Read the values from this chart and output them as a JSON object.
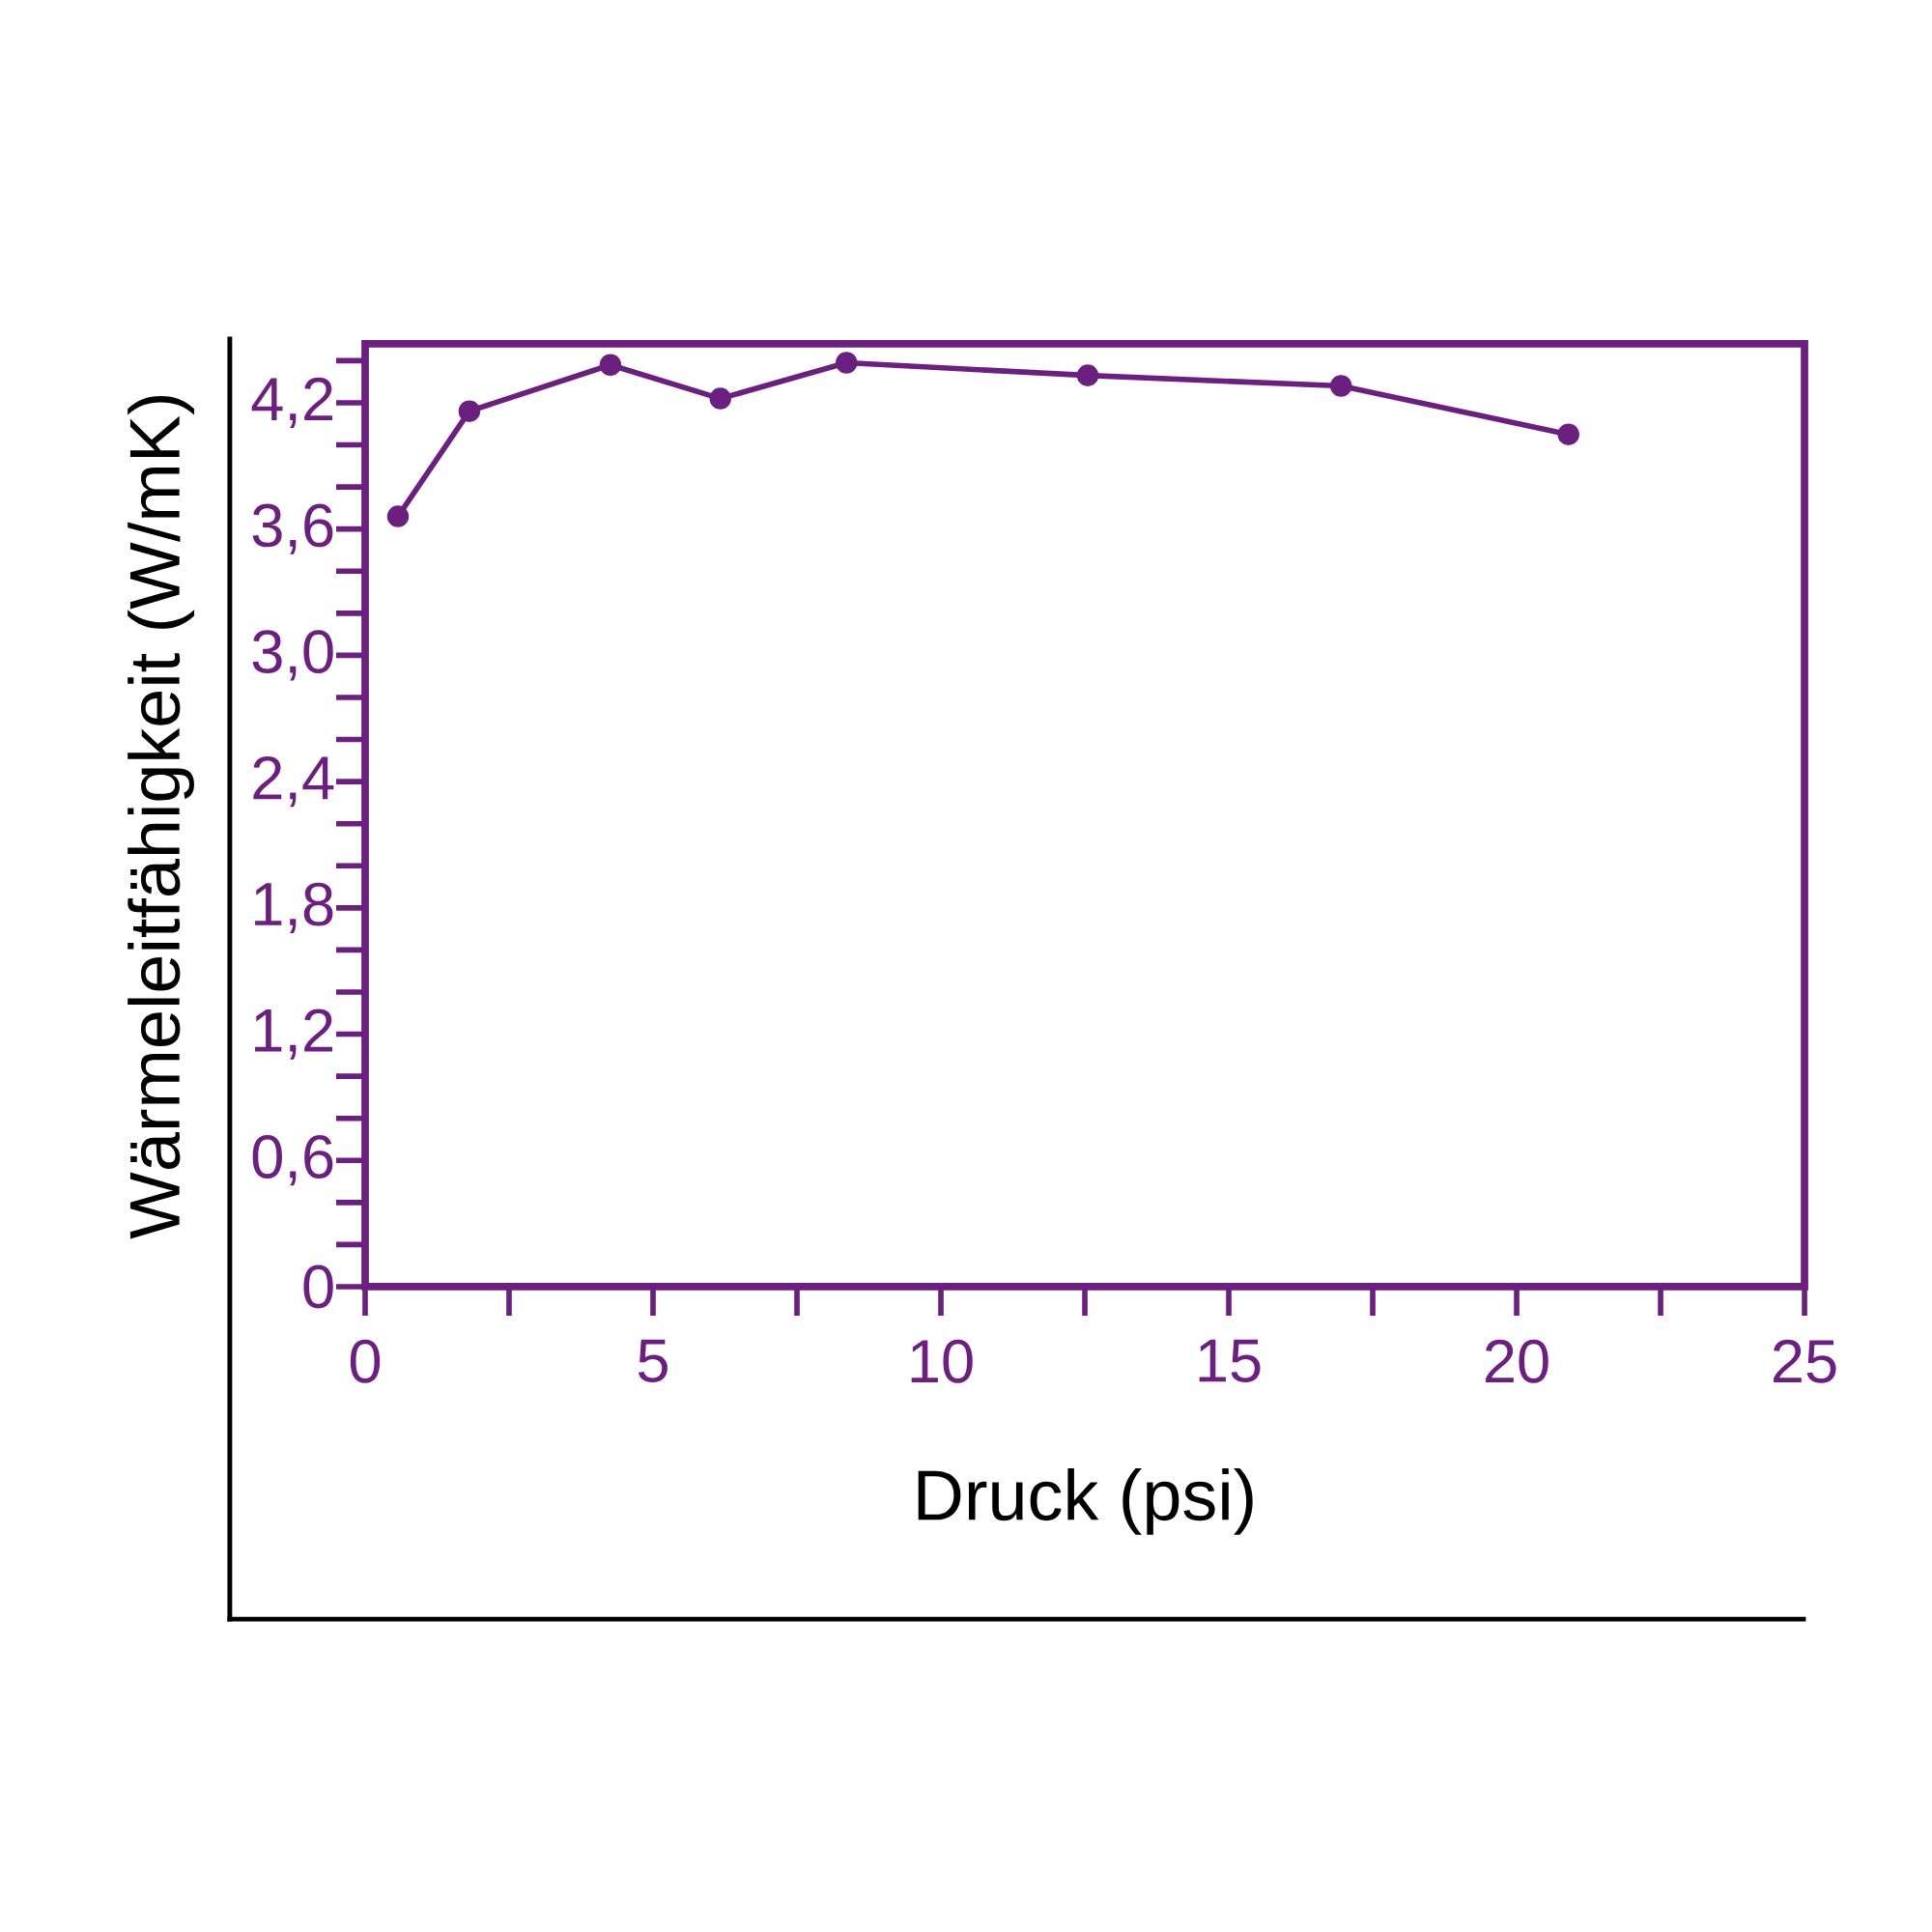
{
  "chart_data": {
    "type": "line",
    "xlabel": "Druck (psi)",
    "ylabel": "Wärmeleitfähigkeit (W/mK)",
    "x": [
      0.57,
      1.81,
      4.26,
      6.17,
      8.36,
      12.55,
      16.95,
      20.9
    ],
    "values": [
      3.66,
      4.16,
      4.38,
      4.22,
      4.39,
      4.33,
      4.28,
      4.05
    ],
    "color": "#6b1f7e",
    "marker": "circle",
    "line_style": "solid",
    "grid": false,
    "xlim": [
      0,
      25
    ],
    "xticks": [
      0,
      {
        "value": 2.5,
        "label": null
      },
      5,
      {
        "value": 7.5,
        "label": null
      },
      10,
      {
        "value": 12.5,
        "label": null
      },
      15,
      {
        "value": 17.5,
        "label": null
      },
      20,
      {
        "value": 22.5,
        "label": null
      },
      25
    ],
    "ylim": [
      0,
      4.48
    ],
    "yticks": [
      0,
      {
        "value": 0.2,
        "label": null
      },
      {
        "value": 0.4,
        "label": null
      },
      {
        "value": 0.6,
        "label": "0,6"
      },
      {
        "value": 0.8,
        "label": null
      },
      {
        "value": 1.0,
        "label": null
      },
      {
        "value": 1.2,
        "label": "1,2"
      },
      {
        "value": 1.4,
        "label": null
      },
      {
        "value": 1.6,
        "label": null
      },
      {
        "value": 1.8,
        "label": "1,8"
      },
      {
        "value": 2.0,
        "label": null
      },
      {
        "value": 2.2,
        "label": null
      },
      {
        "value": 2.4,
        "label": "2,4"
      },
      {
        "value": 2.6,
        "label": null
      },
      {
        "value": 2.8,
        "label": null
      },
      {
        "value": 3.0,
        "label": "3,0"
      },
      {
        "value": 3.2,
        "label": null
      },
      {
        "value": 3.4,
        "label": null
      },
      {
        "value": 3.6,
        "label": "3,6"
      },
      {
        "value": 3.8,
        "label": null
      },
      {
        "value": 4.0,
        "label": null
      },
      {
        "value": 4.2,
        "label": "4,2"
      },
      {
        "value": 4.4,
        "label": null
      }
    ]
  }
}
